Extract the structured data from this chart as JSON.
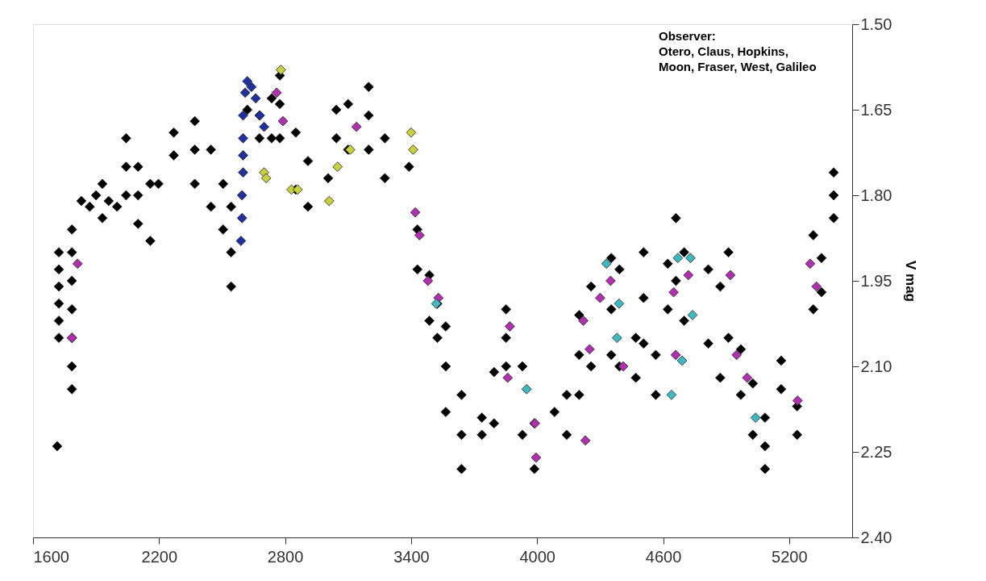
{
  "chart_data": {
    "type": "scatter",
    "ylabel": "V mag",
    "xlim": [
      1600,
      5500
    ],
    "ylim": [
      2.4,
      1.5
    ],
    "xticks": [
      1600,
      2200,
      2800,
      3400,
      4000,
      4600,
      5200
    ],
    "yticks": [
      {
        "value": 1.5,
        "label": "1.50"
      },
      1.65,
      {
        "value": 1.8,
        "label": "1.80"
      },
      1.95,
      {
        "value": 2.1,
        "label": "2.10"
      },
      2.25,
      {
        "value": 2.4,
        "label": "2.40"
      }
    ],
    "grid": false,
    "marker": "diamond",
    "annotations": [
      "Observer:\nOtero, Claus, Hopkins,\nMoon, Fraser, West, Galileo"
    ],
    "series": [
      {
        "color": "#000000",
        "x": [
          1715,
          1723,
          1723,
          1723,
          1723,
          1723,
          1723,
          1785,
          1785,
          1785,
          1785,
          1785,
          1785,
          1785,
          1830,
          1870,
          1900,
          1930,
          1930,
          1960,
          2000,
          2043,
          2043,
          2043,
          2100,
          2100,
          2100,
          2158,
          2158,
          2197,
          2270,
          2270,
          2370,
          2370,
          2370,
          2447,
          2447,
          2505,
          2505,
          2543,
          2543,
          2543,
          2620,
          2678,
          2678,
          2736,
          2736,
          2775,
          2775,
          2775,
          2851,
          2851,
          2909,
          2909,
          3005,
          3044,
          3044,
          3100,
          3100,
          3198,
          3198,
          3198,
          3275,
          3275,
          3390,
          3430,
          3430,
          3487,
          3487,
          3525,
          3525,
          3565,
          3565,
          3565,
          3640,
          3640,
          3640,
          3737,
          3737,
          3795,
          3795,
          3852,
          3852,
          3852,
          3930,
          3930,
          3987,
          3987,
          4083,
          4141,
          4141,
          4200,
          4200,
          4200,
          4257,
          4257,
          4353,
          4353,
          4353,
          4392,
          4392,
          4470,
          4470,
          4507,
          4507,
          4507,
          4565,
          4565,
          4622,
          4622,
          4661,
          4661,
          4700,
          4700,
          4815,
          4815,
          4872,
          4872,
          4911,
          4911,
          4970,
          4970,
          5027,
          5027,
          5085,
          5085,
          5085,
          5162,
          5162,
          5238,
          5238,
          5315,
          5315,
          5354,
          5354,
          5412,
          5412,
          5412
        ],
        "values": [
          2.24,
          1.9,
          1.93,
          1.96,
          1.99,
          2.02,
          2.05,
          1.86,
          1.9,
          1.95,
          2.0,
          2.05,
          2.1,
          2.14,
          1.81,
          1.82,
          1.8,
          1.78,
          1.84,
          1.81,
          1.82,
          1.7,
          1.75,
          1.8,
          1.75,
          1.8,
          1.85,
          1.78,
          1.88,
          1.78,
          1.69,
          1.73,
          1.67,
          1.72,
          1.78,
          1.72,
          1.82,
          1.78,
          1.86,
          1.82,
          1.9,
          1.96,
          1.65,
          1.66,
          1.7,
          1.63,
          1.7,
          1.59,
          1.64,
          1.7,
          1.69,
          1.79,
          1.74,
          1.82,
          1.77,
          1.65,
          1.7,
          1.64,
          1.72,
          1.61,
          1.66,
          1.72,
          1.7,
          1.77,
          1.75,
          1.86,
          1.93,
          1.94,
          2.02,
          1.99,
          2.05,
          2.03,
          2.1,
          2.18,
          2.15,
          2.22,
          2.28,
          2.19,
          2.22,
          2.11,
          2.2,
          2.0,
          2.05,
          2.1,
          2.1,
          2.22,
          2.2,
          2.28,
          2.18,
          2.15,
          2.22,
          2.01,
          2.08,
          2.15,
          1.96,
          2.1,
          1.91,
          2.0,
          2.08,
          1.93,
          2.1,
          2.05,
          2.12,
          1.9,
          1.98,
          2.06,
          2.08,
          2.15,
          1.92,
          2.0,
          1.84,
          1.95,
          1.9,
          2.02,
          1.93,
          2.06,
          1.96,
          2.12,
          1.9,
          2.05,
          2.07,
          2.15,
          2.13,
          2.22,
          2.19,
          2.24,
          2.28,
          2.09,
          2.14,
          2.17,
          2.22,
          1.87,
          2.0,
          1.91,
          1.97,
          1.76,
          1.8,
          1.84
        ]
      },
      {
        "color": "#b030b0",
        "x": [
          1812,
          1785,
          2760,
          2790,
          3140,
          3420,
          3440,
          3480,
          3530,
          3870,
          3860,
          3990,
          3995,
          4230,
          4220,
          4250,
          4300,
          4350,
          4410,
          4650,
          4660,
          4720,
          4920,
          4950,
          5000,
          5300,
          5330,
          5240
        ],
        "values": [
          1.92,
          2.05,
          1.62,
          1.67,
          1.68,
          1.83,
          1.87,
          1.95,
          1.98,
          2.03,
          2.12,
          2.2,
          2.26,
          2.23,
          2.02,
          2.07,
          1.98,
          1.95,
          2.1,
          1.97,
          2.08,
          1.94,
          1.94,
          2.08,
          2.12,
          1.92,
          1.96,
          2.16
        ]
      },
      {
        "color": "#40b8c0",
        "x": [
          3520,
          3950,
          4330,
          4390,
          4380,
          4670,
          4730,
          4740,
          4690,
          4640,
          5040
        ],
        "values": [
          1.99,
          2.14,
          1.92,
          1.99,
          2.05,
          1.91,
          1.91,
          2.01,
          2.09,
          2.15,
          2.19
        ]
      },
      {
        "color": "#c8d040",
        "x": [
          2780,
          2700,
          2710,
          2830,
          2860,
          3010,
          3050,
          3110,
          3400,
          3410
        ],
        "values": [
          1.58,
          1.76,
          1.77,
          1.79,
          1.79,
          1.81,
          1.75,
          1.72,
          1.69,
          1.72
        ]
      },
      {
        "color": "#2030a0",
        "x": [
          2600,
          2600,
          2600,
          2600,
          2595,
          2595,
          2590,
          2610,
          2620,
          2640,
          2660,
          2680,
          2700
        ],
        "values": [
          1.66,
          1.7,
          1.73,
          1.76,
          1.8,
          1.84,
          1.88,
          1.62,
          1.6,
          1.61,
          1.63,
          1.66,
          1.68
        ]
      }
    ]
  }
}
